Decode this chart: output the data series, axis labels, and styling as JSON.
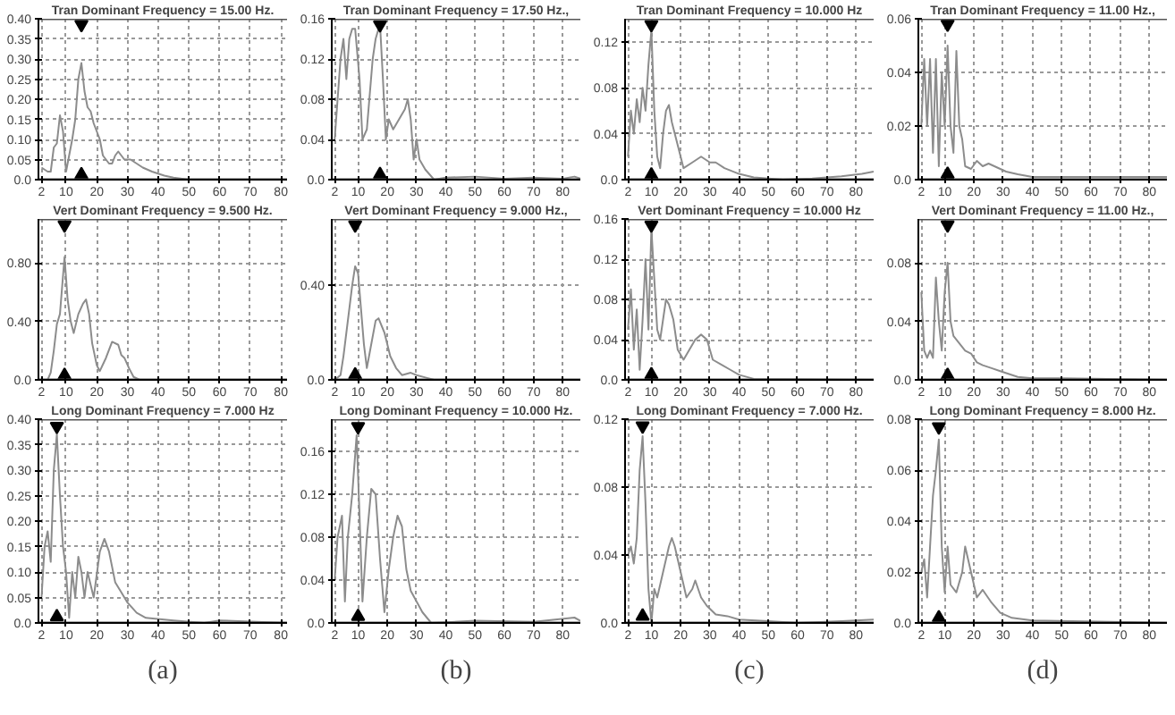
{
  "chart_data": [
    {
      "type": "line",
      "title": "Tran Dominant Frequency = 15.00 Hz.",
      "x": [
        2,
        4,
        5,
        6,
        7,
        8,
        9,
        10,
        11,
        12,
        13,
        14,
        15,
        16,
        17,
        18,
        19,
        20,
        21,
        22,
        23,
        24,
        25,
        26,
        27,
        28,
        29,
        31,
        33,
        35,
        38,
        42,
        45,
        50,
        82
      ],
      "series": [
        {
          "color": "#8c8c8c",
          "values": [
            0.03,
            0.02,
            0.02,
            0.08,
            0.09,
            0.16,
            0.12,
            0.02,
            0.06,
            0.1,
            0.15,
            0.25,
            0.29,
            0.22,
            0.18,
            0.17,
            0.14,
            0.12,
            0.1,
            0.06,
            0.05,
            0.04,
            0.04,
            0.06,
            0.07,
            0.06,
            0.05,
            0.05,
            0.04,
            0.03,
            0.02,
            0.01,
            0.005,
            0,
            0
          ]
        },
        {
          "type": "scatter",
          "marker": "triangle",
          "color": "#000000",
          "x": [
            15,
            15
          ],
          "values": [
            0.386,
            0.012
          ]
        }
      ],
      "xlim": [
        1,
        82
      ],
      "ylim": [
        0,
        0.4
      ],
      "xticks": [
        2,
        10,
        20,
        30,
        40,
        50,
        60,
        70,
        80
      ],
      "yticks": [
        {
          "value": 0,
          "label": "0.0"
        },
        0.05,
        {
          "value": 0.1,
          "label": "0.10"
        },
        0.15,
        {
          "value": 0.2,
          "label": "0.20"
        },
        0.25,
        {
          "value": 0.3,
          "label": "0.30"
        },
        0.35,
        {
          "value": 0.4,
          "label": "0.40"
        }
      ],
      "grid": true
    },
    {
      "type": "line",
      "title": "Tran Dominant Frequency = 17.50 Hz.,",
      "x": [
        2,
        3,
        4,
        5,
        6,
        7,
        8,
        9,
        10.5,
        11.5,
        13,
        15,
        16,
        17.5,
        18.5,
        19.5,
        20.5,
        22,
        24,
        26,
        27,
        28,
        29,
        30,
        31,
        33,
        36,
        40,
        50,
        60,
        70,
        80,
        84,
        86
      ],
      "series": [
        {
          "color": "#8c8c8c",
          "values": [
            0.04,
            0.08,
            0.12,
            0.14,
            0.1,
            0.14,
            0.15,
            0.15,
            0.1,
            0.04,
            0.05,
            0.12,
            0.14,
            0.155,
            0.1,
            0.04,
            0.06,
            0.05,
            0.06,
            0.07,
            0.08,
            0.06,
            0.02,
            0.04,
            0.02,
            0.01,
            0,
            0.002,
            0.003,
            0.001,
            0.002,
            0.001,
            0.003,
            0.001
          ]
        },
        {
          "type": "scatter",
          "marker": "triangle",
          "color": "#000000",
          "x": [
            17.5,
            17.5
          ],
          "values": [
            0.154,
            0.005
          ]
        }
      ],
      "xlim": [
        1,
        86
      ],
      "ylim": [
        0,
        0.16
      ],
      "xticks": [
        2,
        10,
        20,
        30,
        40,
        50,
        60,
        70,
        80
      ],
      "yticks": [
        {
          "value": 0,
          "label": "0.0"
        },
        0.04,
        0.08,
        0.12,
        0.16
      ],
      "grid": true
    },
    {
      "type": "line",
      "title": "Tran Dominant Frequency = 10.000 Hz",
      "x": [
        2,
        3,
        4,
        5,
        6,
        7,
        8,
        9,
        10,
        11,
        12,
        13,
        14,
        15,
        16,
        17,
        18,
        20,
        21,
        24,
        27,
        30,
        32,
        35,
        40,
        45,
        55,
        65,
        75,
        82,
        86
      ],
      "series": [
        {
          "color": "#8c8c8c",
          "values": [
            0.02,
            0.06,
            0.04,
            0.07,
            0.05,
            0.08,
            0.06,
            0.1,
            0.13,
            0.06,
            0.02,
            0.01,
            0.04,
            0.06,
            0.065,
            0.05,
            0.04,
            0.02,
            0.01,
            0.015,
            0.02,
            0.015,
            0.015,
            0.01,
            0.005,
            0.002,
            0,
            0.001,
            0.003,
            0.005,
            0.007
          ]
        },
        {
          "type": "scatter",
          "marker": "triangle",
          "color": "#000000",
          "x": [
            10,
            10
          ],
          "values": [
            0.135,
            0.004
          ]
        }
      ],
      "xlim": [
        1,
        86
      ],
      "ylim": [
        0,
        0.14
      ],
      "xticks": [
        2,
        10,
        20,
        30,
        40,
        50,
        60,
        70,
        80
      ],
      "yticks": [
        {
          "value": 0,
          "label": "0.0"
        },
        0.04,
        0.08,
        0.12
      ],
      "grid": true
    },
    {
      "type": "line",
      "title": "Tran Dominant Frequency = 11.00 Hz.,",
      "x": [
        2,
        3,
        4,
        5,
        6,
        7,
        8,
        9,
        10,
        11,
        12,
        13,
        14,
        15,
        16,
        17,
        19,
        21,
        23,
        25,
        27,
        29,
        31,
        35,
        40,
        50,
        60,
        70,
        80,
        86
      ],
      "series": [
        {
          "color": "#8c8c8c",
          "values": [
            0.02,
            0.045,
            0.02,
            0.045,
            0.01,
            0.045,
            0.005,
            0.04,
            0.02,
            0.05,
            0.02,
            0.01,
            0.048,
            0.02,
            0.015,
            0.005,
            0.004,
            0.007,
            0.005,
            0.006,
            0.005,
            0.004,
            0.003,
            0.002,
            0.001,
            0.001,
            0.001,
            0.001,
            0.001,
            0.001
          ]
        },
        {
          "type": "scatter",
          "marker": "triangle",
          "color": "#000000",
          "x": [
            11,
            11
          ],
          "values": [
            0.058,
            0.002
          ]
        }
      ],
      "xlim": [
        1,
        86
      ],
      "ylim": [
        0,
        0.06
      ],
      "xticks": [
        2,
        10,
        20,
        30,
        40,
        50,
        60,
        70,
        80
      ],
      "yticks": [
        {
          "value": 0,
          "label": "0.0"
        },
        0.02,
        0.04,
        0.06
      ],
      "grid": true
    },
    {
      "type": "line",
      "title": "Vert Dominant Frequency = 9.500 Hz.",
      "x": [
        2,
        4,
        5,
        6,
        7,
        8,
        9.5,
        10.5,
        11.5,
        12.5,
        14,
        15.5,
        16.5,
        17.5,
        18.5,
        20,
        21,
        23,
        25,
        27,
        28,
        29,
        30.5,
        32,
        34,
        82
      ],
      "series": [
        {
          "color": "#8c8c8c",
          "values": [
            0,
            0,
            0.05,
            0.2,
            0.38,
            0.45,
            0.84,
            0.55,
            0.4,
            0.32,
            0.45,
            0.52,
            0.55,
            0.45,
            0.25,
            0.1,
            0.06,
            0.15,
            0.26,
            0.24,
            0.17,
            0.15,
            0.08,
            0.02,
            0,
            0
          ]
        },
        {
          "type": "scatter",
          "marker": "triangle",
          "color": "#000000",
          "x": [
            9.5,
            9.5
          ],
          "values": [
            1.06,
            0.03
          ]
        }
      ],
      "xlim": [
        1,
        82
      ],
      "ylim": [
        0,
        1.1
      ],
      "xticks": [
        2,
        10,
        20,
        30,
        40,
        50,
        60,
        70,
        80
      ],
      "yticks": [
        {
          "value": 0,
          "label": "0.0"
        },
        {
          "value": 0.4,
          "label": "0.40"
        },
        {
          "value": 0.8,
          "label": "0.80"
        }
      ],
      "grid": true
    },
    {
      "type": "line",
      "title": "Vert Dominant Frequency = 9.000 Hz.,",
      "x": [
        2,
        4,
        5,
        6.5,
        8,
        9,
        10,
        11,
        12,
        13,
        14.5,
        16,
        17,
        19,
        21,
        23,
        25,
        28,
        30,
        33,
        36,
        86
      ],
      "series": [
        {
          "color": "#8c8c8c",
          "values": [
            0,
            0.02,
            0.1,
            0.25,
            0.4,
            0.48,
            0.45,
            0.3,
            0.15,
            0.05,
            0.15,
            0.25,
            0.26,
            0.2,
            0.1,
            0.05,
            0.02,
            0.03,
            0.02,
            0.01,
            0,
            0
          ]
        },
        {
          "type": "scatter",
          "marker": "triangle",
          "color": "#000000",
          "x": [
            9,
            9
          ],
          "values": [
            0.655,
            0.02
          ]
        }
      ],
      "xlim": [
        1,
        86
      ],
      "ylim": [
        0,
        0.68
      ],
      "xticks": [
        2,
        10,
        20,
        30,
        40,
        50,
        60,
        70,
        80
      ],
      "yticks": [
        {
          "value": 0,
          "label": "0.0"
        },
        {
          "value": 0.4,
          "label": "0.40"
        }
      ],
      "grid": true
    },
    {
      "type": "line",
      "title": "Vert Dominant Frequency = 10.000 Hz",
      "x": [
        2,
        3,
        4,
        5,
        6,
        7,
        8,
        9,
        10,
        11,
        12,
        13,
        14,
        15,
        16,
        17.5,
        19,
        21,
        23,
        25,
        27,
        29,
        30,
        31,
        34,
        37,
        40,
        45,
        86
      ],
      "series": [
        {
          "color": "#8c8c8c",
          "values": [
            0.05,
            0.09,
            0.03,
            0.07,
            0.01,
            0.06,
            0.12,
            0.05,
            0.15,
            0.1,
            0.05,
            0.04,
            0.06,
            0.08,
            0.075,
            0.06,
            0.03,
            0.02,
            0.03,
            0.04,
            0.045,
            0.04,
            0.03,
            0.02,
            0.015,
            0.01,
            0.005,
            0.001,
            0
          ]
        },
        {
          "type": "scatter",
          "marker": "triangle",
          "color": "#000000",
          "x": [
            10,
            10
          ],
          "values": [
            0.154,
            0.005
          ]
        }
      ],
      "xlim": [
        1,
        86
      ],
      "ylim": [
        0,
        0.16
      ],
      "xticks": [
        2,
        10,
        20,
        30,
        40,
        50,
        60,
        70,
        80
      ],
      "yticks": [
        {
          "value": 0,
          "label": "0.0"
        },
        0.04,
        0.08,
        0.12,
        0.16
      ],
      "grid": true
    },
    {
      "type": "line",
      "title": "Vert Dominant Frequency = 11.00 Hz.,",
      "x": [
        2,
        3,
        4,
        5,
        6,
        7,
        8,
        9,
        10,
        11,
        12,
        13,
        15,
        17,
        19,
        21,
        23,
        26,
        29,
        32,
        35,
        40,
        50,
        86
      ],
      "series": [
        {
          "color": "#8c8c8c",
          "values": [
            0.06,
            0.02,
            0.015,
            0.02,
            0.015,
            0.07,
            0.04,
            0.02,
            0.06,
            0.08,
            0.04,
            0.03,
            0.025,
            0.02,
            0.018,
            0.012,
            0.01,
            0.008,
            0.006,
            0.004,
            0.002,
            0.001,
            0.001,
            0
          ]
        },
        {
          "type": "scatter",
          "marker": "triangle",
          "color": "#000000",
          "x": [
            11,
            11
          ],
          "values": [
            0.106,
            0.003
          ]
        }
      ],
      "xlim": [
        1,
        86
      ],
      "ylim": [
        0,
        0.11
      ],
      "xticks": [
        2,
        10,
        20,
        30,
        40,
        50,
        60,
        70,
        80
      ],
      "yticks": [
        {
          "value": 0,
          "label": "0.0"
        },
        0.04,
        0.08
      ],
      "grid": true
    },
    {
      "type": "line",
      "title": "Long Dominant Frequency = 7.000 Hz",
      "x": [
        2,
        3,
        4,
        5,
        6,
        7,
        8,
        9,
        10,
        11,
        12,
        13,
        14,
        15,
        16,
        17,
        19,
        21,
        22.5,
        24,
        26,
        28,
        30,
        33,
        36,
        45,
        55,
        60,
        82
      ],
      "series": [
        {
          "color": "#8c8c8c",
          "values": [
            0.05,
            0.15,
            0.18,
            0.12,
            0.3,
            0.37,
            0.25,
            0.15,
            0.1,
            0.01,
            0.1,
            0.05,
            0.13,
            0.1,
            0.05,
            0.1,
            0.05,
            0.14,
            0.165,
            0.14,
            0.08,
            0.06,
            0.04,
            0.02,
            0.01,
            0.005,
            0,
            0.005,
            0
          ]
        },
        {
          "type": "scatter",
          "marker": "triangle",
          "color": "#000000",
          "x": [
            7,
            7
          ],
          "values": [
            0.386,
            0.012
          ]
        }
      ],
      "xlim": [
        1,
        82
      ],
      "ylim": [
        0,
        0.4
      ],
      "xticks": [
        2,
        10,
        20,
        30,
        40,
        50,
        60,
        70,
        80
      ],
      "yticks": [
        {
          "value": 0,
          "label": "0.0"
        },
        0.05,
        {
          "value": 0.1,
          "label": "0.10"
        },
        0.15,
        {
          "value": 0.2,
          "label": "0.20"
        },
        0.25,
        {
          "value": 0.3,
          "label": "0.30"
        },
        0.35,
        {
          "value": 0.4,
          "label": "0.40"
        }
      ],
      "grid": true,
      "annotations": [
        "(a)"
      ]
    },
    {
      "type": "line",
      "title": "Long Dominant Frequency = 10.000 Hz.",
      "x": [
        2,
        3,
        4.5,
        5.5,
        6.5,
        8,
        9.5,
        10.5,
        11.5,
        13,
        14.5,
        16,
        17.5,
        19,
        20.5,
        22,
        23.5,
        25,
        26.5,
        28,
        30,
        32,
        35,
        50,
        70,
        84,
        86
      ],
      "series": [
        {
          "color": "#8c8c8c",
          "values": [
            0.04,
            0.08,
            0.1,
            0.02,
            0.08,
            0.12,
            0.175,
            0.1,
            0.02,
            0.08,
            0.125,
            0.12,
            0.06,
            0.01,
            0.05,
            0.08,
            0.1,
            0.09,
            0.05,
            0.03,
            0.02,
            0.01,
            0,
            0.002,
            0.001,
            0.005,
            0.002
          ]
        },
        {
          "type": "scatter",
          "marker": "triangle",
          "color": "#000000",
          "x": [
            10,
            10
          ],
          "values": [
            0.183,
            0.006
          ]
        }
      ],
      "xlim": [
        1,
        86
      ],
      "ylim": [
        0,
        0.19
      ],
      "xticks": [
        2,
        10,
        20,
        30,
        40,
        50,
        60,
        70,
        80
      ],
      "yticks": [
        {
          "value": 0,
          "label": "0.0"
        },
        0.04,
        0.08,
        0.12,
        0.16
      ],
      "grid": true,
      "annotations": [
        "(b)"
      ]
    },
    {
      "type": "line",
      "title": "Long Dominant Frequency = 7.000 Hz.",
      "x": [
        2,
        3,
        4,
        5,
        6,
        7,
        8,
        9,
        10,
        11,
        12,
        14,
        16,
        17,
        18,
        20,
        22,
        24,
        25,
        27,
        29,
        32,
        36,
        40,
        50,
        60,
        75,
        86
      ],
      "series": [
        {
          "color": "#8c8c8c",
          "values": [
            0.04,
            0.045,
            0.035,
            0.05,
            0.09,
            0.11,
            0.07,
            0.02,
            0,
            0.02,
            0.015,
            0.03,
            0.045,
            0.05,
            0.045,
            0.03,
            0.015,
            0.02,
            0.025,
            0.015,
            0.01,
            0.005,
            0.004,
            0.002,
            0.001,
            0,
            0.001,
            0.002
          ]
        },
        {
          "type": "scatter",
          "marker": "triangle",
          "color": "#000000",
          "x": [
            7,
            7
          ],
          "values": [
            0.116,
            0.004
          ]
        }
      ],
      "xlim": [
        1,
        86
      ],
      "ylim": [
        0,
        0.12
      ],
      "xticks": [
        2,
        10,
        20,
        30,
        40,
        50,
        60,
        70,
        80
      ],
      "yticks": [
        {
          "value": 0,
          "label": "0.0"
        },
        0.04,
        0.08,
        0.12
      ],
      "grid": true,
      "annotations": [
        "(c)"
      ]
    },
    {
      "type": "line",
      "title": "Long Dominant Frequency = 8.000 Hz.",
      "x": [
        2,
        3,
        4,
        5,
        6,
        7,
        8,
        9,
        10,
        11,
        12,
        14,
        16,
        17,
        19,
        21,
        23,
        26,
        29,
        33,
        40,
        86
      ],
      "series": [
        {
          "color": "#8c8c8c",
          "values": [
            0.02,
            0.025,
            0.01,
            0.03,
            0.05,
            0.06,
            0.072,
            0.03,
            0.012,
            0.03,
            0.015,
            0.012,
            0.02,
            0.03,
            0.02,
            0.01,
            0.013,
            0.008,
            0.004,
            0.002,
            0.001,
            0
          ]
        },
        {
          "type": "scatter",
          "marker": "triangle",
          "color": "#000000",
          "x": [
            8,
            8
          ],
          "values": [
            0.077,
            0.002
          ]
        }
      ],
      "xlim": [
        1,
        86
      ],
      "ylim": [
        0,
        0.08
      ],
      "xticks": [
        2,
        10,
        20,
        30,
        40,
        50,
        60,
        70,
        80
      ],
      "yticks": [
        {
          "value": 0,
          "label": "0.0"
        },
        0.02,
        0.04,
        0.06,
        0.08
      ],
      "grid": true,
      "annotations": [
        "(d)"
      ]
    }
  ]
}
